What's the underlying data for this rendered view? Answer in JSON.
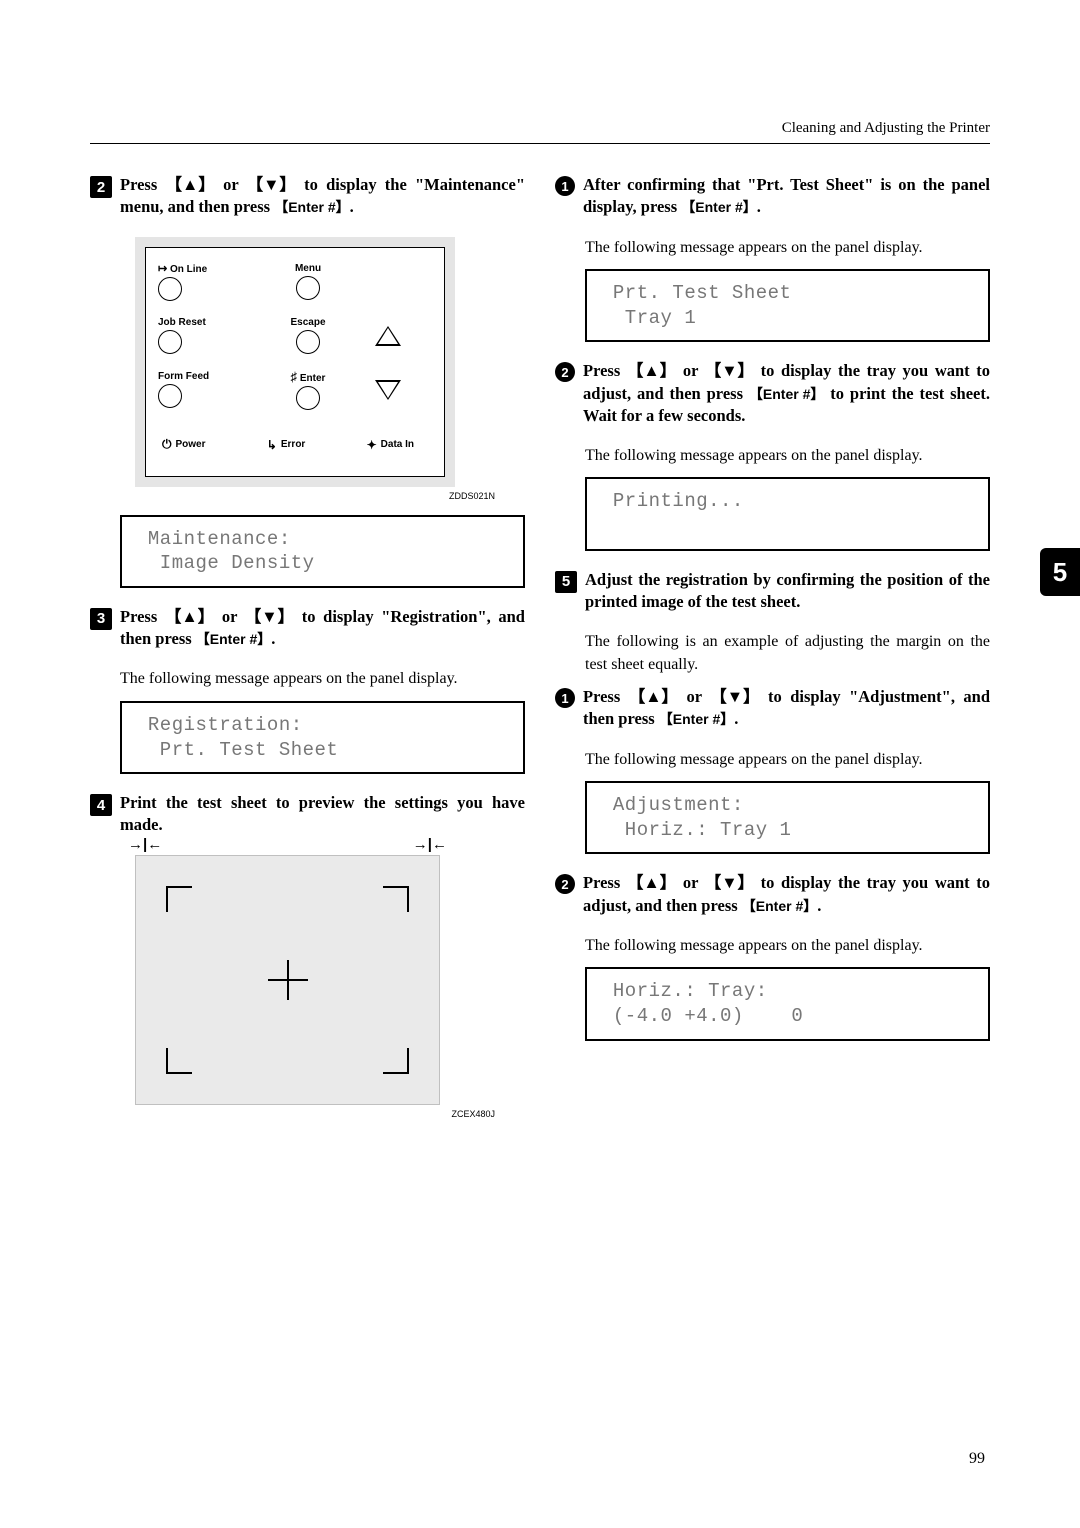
{
  "header": {
    "title": "Cleaning and Adjusting the Printer"
  },
  "side_tab": "5",
  "page_number": "99",
  "fig_labels": {
    "panel": "ZDDS021N",
    "sheet": "ZCEX480J"
  },
  "panel": {
    "online": "On Line",
    "menu": "Menu",
    "jobreset": "Job Reset",
    "escape": "Escape",
    "formfeed": "Form Feed",
    "enter": "Enter",
    "power": "Power",
    "error": "Error",
    "datain": "Data In"
  },
  "steps": {
    "s2": {
      "num": "2",
      "text_a": "Press ",
      "text_b": " or ",
      "text_c": " to display the \"Maintenance\" menu, and then press ",
      "text_d": "."
    },
    "s3": {
      "num": "3",
      "text_a": "Press ",
      "text_b": " or ",
      "text_c": " to display \"Registration\", and then press ",
      "text_d": "."
    },
    "s4": {
      "num": "4",
      "text": "Print the test sheet to preview the settings you have made."
    },
    "s5": {
      "num": "5",
      "text": "Adjust the registration by confirming the position of the printed image of the test sheet."
    },
    "sub1": {
      "num": "1",
      "text_a": "After confirming that \"Prt. Test Sheet\" is on the panel display, press ",
      "text_b": "."
    },
    "sub2": {
      "num": "2",
      "text_a": "Press ",
      "text_b": " or ",
      "text_c": " to display the tray you want to adjust, and then press ",
      "text_d": " to print the test sheet. Wait for a few seconds."
    },
    "sub5_1": {
      "num": "1",
      "text_a": "Press ",
      "text_b": " or ",
      "text_c": " to display \"Adjustment\", and then press ",
      "text_d": "."
    },
    "sub5_2": {
      "num": "2",
      "text_a": "Press ",
      "text_b": " or ",
      "text_c": " to display the tray you want to adjust, and then press ",
      "text_d": "."
    }
  },
  "body": {
    "msg_appears": "The following message appears on the panel display.",
    "example_margin": "The following is an example of adjusting the margin on the test sheet equally."
  },
  "keys": {
    "up": "【▲】",
    "down": "【▼】",
    "enter": "【Enter #】"
  },
  "displays": {
    "d1_l1": " Maintenance:",
    "d1_l2": "  Image Density",
    "d2_l1": " Registration:",
    "d2_l2": "  Prt. Test Sheet",
    "d3_l1": " Prt. Test Sheet",
    "d3_l2": "  Tray 1",
    "d4_l1": " Printing...",
    "d4_l2": " ",
    "d5_l1": " Adjustment:",
    "d5_l2": "  Horiz.: Tray 1",
    "d6_l1": " Horiz.: Tray:",
    "d6_l2": " (-4.0 +4.0)    0"
  },
  "margin_arrows": {
    "left": "→|←",
    "right": "→|←"
  }
}
